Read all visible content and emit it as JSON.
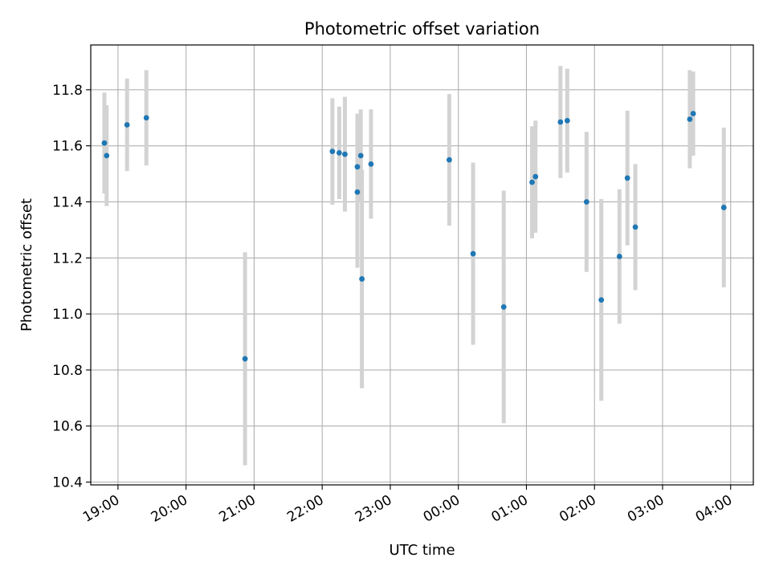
{
  "chart_data": {
    "type": "scatter",
    "title": "Photometric offset variation",
    "xlabel": "UTC time",
    "ylabel": "Photometric offset",
    "grid": true,
    "x_tick_labels": [
      "19:00",
      "20:00",
      "21:00",
      "22:00",
      "23:00",
      "00:00",
      "01:00",
      "02:00",
      "03:00",
      "04:00"
    ],
    "y_tick_labels": [
      "10.4",
      "10.6",
      "10.8",
      "11.0",
      "11.2",
      "11.4",
      "11.6",
      "11.8"
    ],
    "ylim": [
      10.39,
      11.96
    ],
    "xlim": [
      "18:36",
      "04:20"
    ],
    "colors": {
      "marker": "#1f77b4",
      "errorbar": "#d3d3d3",
      "grid": "#b0b0b0"
    },
    "points": [
      {
        "t": "18:48",
        "y": 11.61,
        "yerr": 0.18
      },
      {
        "t": "18:50",
        "y": 11.565,
        "yerr": 0.18
      },
      {
        "t": "19:08",
        "y": 11.675,
        "yerr": 0.165
      },
      {
        "t": "19:25",
        "y": 11.7,
        "yerr": 0.17
      },
      {
        "t": "20:52",
        "y": 10.84,
        "yerr": 0.38
      },
      {
        "t": "22:09",
        "y": 11.58,
        "yerr": 0.19
      },
      {
        "t": "22:15",
        "y": 11.575,
        "yerr": 0.165
      },
      {
        "t": "22:20",
        "y": 11.57,
        "yerr": 0.205
      },
      {
        "t": "22:31",
        "y": 11.525,
        "yerr": 0.19
      },
      {
        "t": "22:31",
        "y": 11.435,
        "yerr": 0.27
      },
      {
        "t": "22:34",
        "y": 11.565,
        "yerr": 0.165
      },
      {
        "t": "22:35",
        "y": 11.125,
        "yerr": 0.39
      },
      {
        "t": "22:43",
        "y": 11.535,
        "yerr": 0.195
      },
      {
        "t": "23:52",
        "y": 11.55,
        "yerr": 0.235
      },
      {
        "t": "00:13",
        "y": 11.215,
        "yerr": 0.325
      },
      {
        "t": "00:40",
        "y": 11.025,
        "yerr": 0.415
      },
      {
        "t": "01:05",
        "y": 11.47,
        "yerr": 0.2
      },
      {
        "t": "01:08",
        "y": 11.49,
        "yerr": 0.2
      },
      {
        "t": "01:30",
        "y": 11.685,
        "yerr": 0.2
      },
      {
        "t": "01:36",
        "y": 11.69,
        "yerr": 0.185
      },
      {
        "t": "01:53",
        "y": 11.4,
        "yerr": 0.25
      },
      {
        "t": "02:06",
        "y": 11.05,
        "yerr": 0.36
      },
      {
        "t": "02:22",
        "y": 11.205,
        "yerr": 0.24
      },
      {
        "t": "02:29",
        "y": 11.485,
        "yerr": 0.24
      },
      {
        "t": "02:36",
        "y": 11.31,
        "yerr": 0.225
      },
      {
        "t": "03:24",
        "y": 11.695,
        "yerr": 0.175
      },
      {
        "t": "03:27",
        "y": 11.715,
        "yerr": 0.15
      },
      {
        "t": "03:54",
        "y": 11.38,
        "yerr": 0.285
      }
    ]
  }
}
